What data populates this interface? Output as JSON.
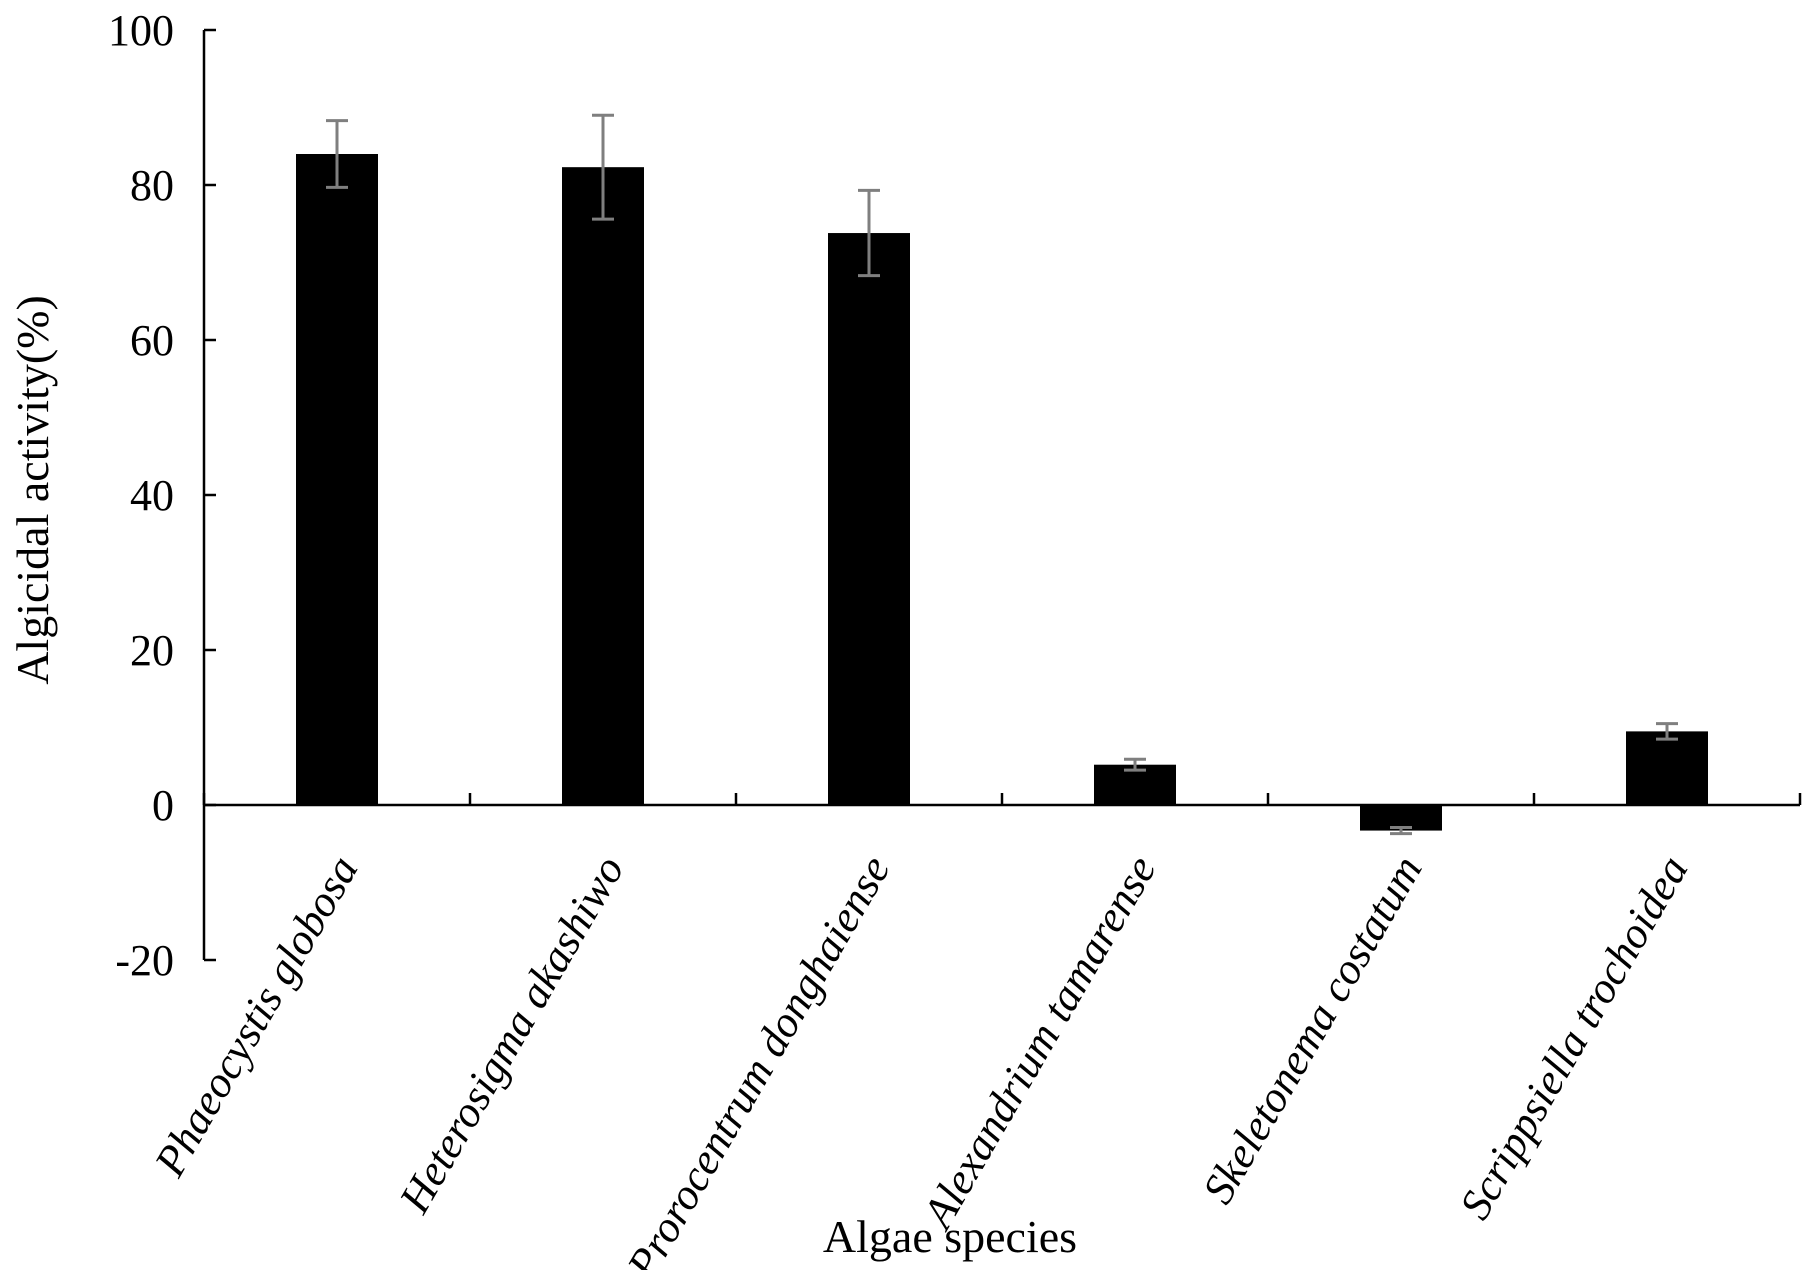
{
  "chart_data": {
    "type": "bar",
    "categories": [
      "Phaeocystis globosa",
      "Heterosigma akashiwo",
      "Prorocentrum donghaiense",
      "Alexandrium tamarense",
      "Skeletonema costatum",
      "Scrippsiella trochoidea"
    ],
    "values": [
      84.0,
      82.3,
      73.8,
      5.2,
      -3.3,
      9.5
    ],
    "errors": [
      4.3,
      6.7,
      5.5,
      0.7,
      0.4,
      1.0
    ],
    "xlabel": "Algae species",
    "ylabel": "Algicidal activity(%)",
    "ylim": [
      -20,
      100
    ],
    "yticks": [
      -20,
      0,
      20,
      40,
      60,
      80,
      100
    ],
    "grid": false,
    "colors": {
      "bar": "#000000",
      "error_bar": "#7f7f7f",
      "axis": "#000000"
    }
  }
}
